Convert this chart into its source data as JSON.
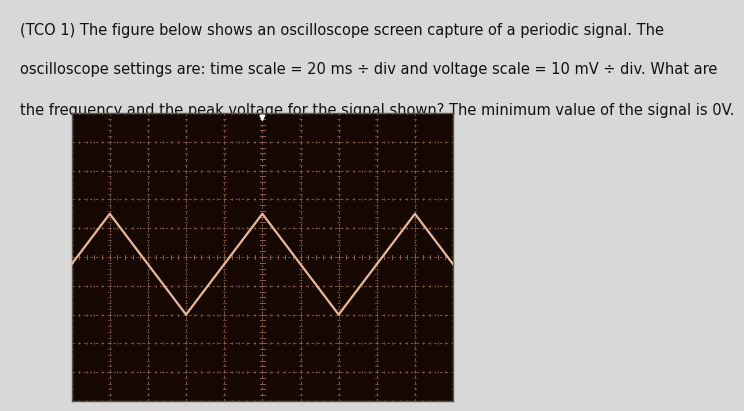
{
  "title_line1": "(TCO 1) The figure below shows an oscilloscope screen capture of a periodic signal. The",
  "title_line2": "oscilloscope settings are: time scale = 20 ms ÷ div and voltage scale = 10 mV ÷ div. What are",
  "title_line3": "the frequency and the peak voltage for the signal shown? The minimum value of the signal is 0V.",
  "text_color": "#111111",
  "text_fontsize": 10.5,
  "scope_bg": "#160800",
  "grid_color": "#8a6040",
  "grid_minor_color": "#5a3a20",
  "major_divs_x": 10,
  "major_divs_y": 10,
  "minor_ticks": 5,
  "signal_color": "#e8b898",
  "signal_linewidth": 1.6,
  "wave_keypoints_x": [
    -1.0,
    1.0,
    3.0,
    5.0,
    7.0,
    9.0,
    11.0
  ],
  "wave_keypoints_y": [
    3.0,
    6.5,
    3.0,
    6.5,
    3.0,
    6.5,
    3.0
  ],
  "xlim": [
    0,
    10
  ],
  "ylim": [
    0,
    10
  ],
  "trigger_x": 5.0,
  "fig_width": 7.0,
  "fig_height": 4.0,
  "fig_bg": "#d8d8d8"
}
